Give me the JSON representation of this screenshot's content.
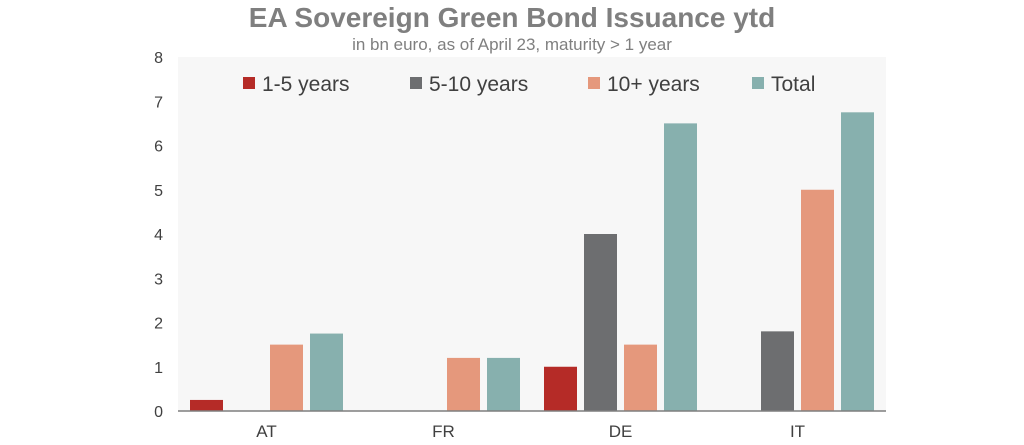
{
  "chart_data": {
    "type": "bar",
    "title": "EA Sovereign Green Bond Issuance ytd",
    "subtitle": "in bn euro, as of April 23, maturity > 1 year",
    "categories": [
      "AT",
      "FR",
      "DE",
      "IT"
    ],
    "series": [
      {
        "name": "1-5 years",
        "color": "#b52b27",
        "values": [
          0.25,
          0,
          1.0,
          0
        ]
      },
      {
        "name": "5-10 years",
        "color": "#6d6e70",
        "values": [
          0,
          0,
          4.0,
          1.8
        ]
      },
      {
        "name": "10+ years",
        "color": "#e5987c",
        "values": [
          1.5,
          1.2,
          1.5,
          5.0
        ]
      },
      {
        "name": "Total",
        "color": "#87b0ae",
        "values": [
          1.75,
          1.2,
          6.5,
          6.75
        ]
      }
    ],
    "yticks": [
      "0",
      "1",
      "2",
      "3",
      "4",
      "5",
      "6",
      "7",
      "8"
    ],
    "ylim": [
      0,
      8
    ],
    "grid": false,
    "legend": "top",
    "xlabel": "",
    "ylabel": ""
  }
}
